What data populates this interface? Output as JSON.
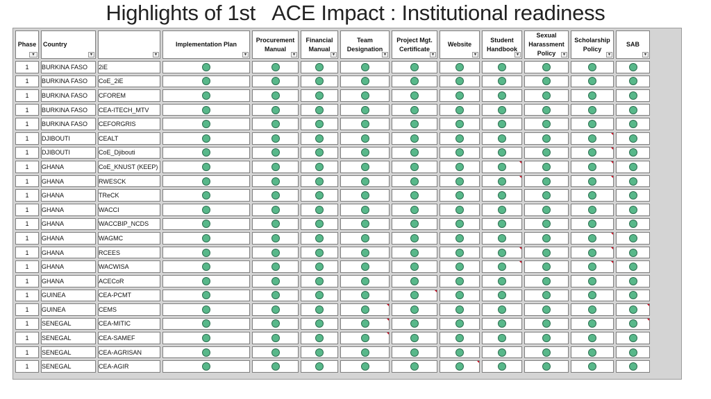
{
  "title": "Highlights of 1st   ACE Impact : Institutional readiness",
  "status_color": "#58b88a",
  "headers": {
    "phase": "Phase",
    "country": "Country",
    "center": "",
    "implementation_plan": "Implementation Plan",
    "procurement_manual": "Procurement Manual",
    "financial_manual": "Financial Manual",
    "team_designation": "Team Designation",
    "project_mgt_certificate": "Project Mgt. Certificate",
    "website": "Website",
    "student_handbook": "Student Handbook",
    "sexual_harassment_policy": "Sexual Harassment Policy",
    "scholarship_policy": "Scholarship Policy",
    "sab": "SAB"
  },
  "rows": [
    {
      "phase": "1",
      "country": "BURKINA FASO",
      "center": "2iE"
    },
    {
      "phase": "1",
      "country": "BURKINA FASO",
      "center": "CoE_2iE"
    },
    {
      "phase": "1",
      "country": "BURKINA FASO",
      "center": "CFOREM"
    },
    {
      "phase": "1",
      "country": "BURKINA FASO",
      "center": "CEA-ITECH_MTV"
    },
    {
      "phase": "1",
      "country": "BURKINA FASO",
      "center": "CEFORGRIS"
    },
    {
      "phase": "1",
      "country": "DJIBOUTI",
      "center": "CEALT"
    },
    {
      "phase": "1",
      "country": "DJIBOUTI",
      "center": "CoE_Djibouti"
    },
    {
      "phase": "1",
      "country": "GHANA",
      "center": "CoE_KNUST (KEEP)"
    },
    {
      "phase": "1",
      "country": "GHANA",
      "center": "RWESCK"
    },
    {
      "phase": "1",
      "country": "GHANA",
      "center": "TReCK"
    },
    {
      "phase": "1",
      "country": "GHANA",
      "center": "WACCI"
    },
    {
      "phase": "1",
      "country": "GHANA",
      "center": "WACCBIP_NCDS"
    },
    {
      "phase": "1",
      "country": "GHANA",
      "center": "WAGMC"
    },
    {
      "phase": "1",
      "country": "GHANA",
      "center": "RCEES"
    },
    {
      "phase": "1",
      "country": "GHANA",
      "center": "WACWISA"
    },
    {
      "phase": "1",
      "country": "GHANA",
      "center": "ACECoR"
    },
    {
      "phase": "1",
      "country": "GUINEA",
      "center": "CEA-PCMT"
    },
    {
      "phase": "1",
      "country": "GUINEA",
      "center": "CEMS"
    },
    {
      "phase": "1",
      "country": "SENEGAL",
      "center": "CEA-MITIC"
    },
    {
      "phase": "1",
      "country": "SENEGAL",
      "center": "CEA-SAMEF"
    },
    {
      "phase": "1",
      "country": "SENEGAL",
      "center": "CEA-AGRISAN"
    },
    {
      "phase": "1",
      "country": "SENEGAL",
      "center": "CEA-AGIR"
    }
  ]
}
